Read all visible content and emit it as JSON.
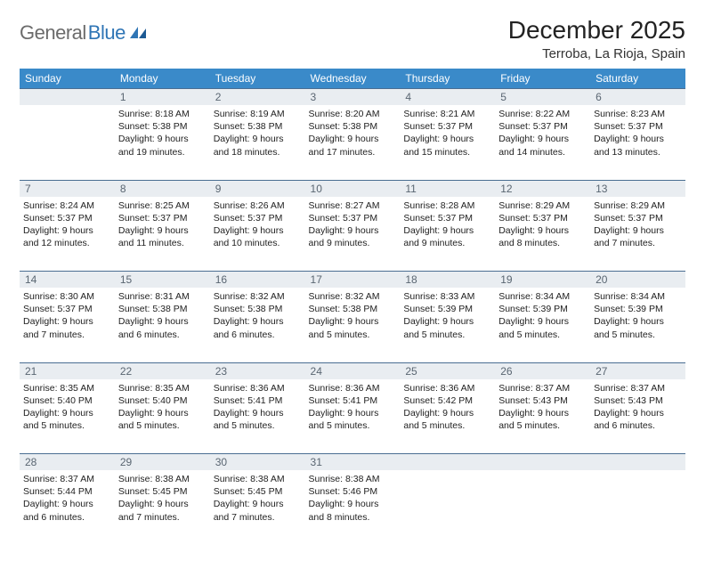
{
  "brand": {
    "name_gray": "General",
    "name_blue": "Blue"
  },
  "title": {
    "month": "December 2025",
    "location": "Terroba, La Rioja, Spain"
  },
  "colors": {
    "header_bg": "#3a8ac9",
    "header_text": "#ffffff",
    "daynum_bg": "#e9edf1",
    "daynum_text": "#5a6672",
    "border": "#2f5d88",
    "logo_gray": "#6b6b6b",
    "logo_blue": "#2f75b5"
  },
  "weekdays": [
    "Sunday",
    "Monday",
    "Tuesday",
    "Wednesday",
    "Thursday",
    "Friday",
    "Saturday"
  ],
  "weeks": [
    {
      "nums": [
        "",
        "1",
        "2",
        "3",
        "4",
        "5",
        "6"
      ],
      "cells": [
        null,
        {
          "sunrise": "8:18 AM",
          "sunset": "5:38 PM",
          "daylight": "9 hours and 19 minutes."
        },
        {
          "sunrise": "8:19 AM",
          "sunset": "5:38 PM",
          "daylight": "9 hours and 18 minutes."
        },
        {
          "sunrise": "8:20 AM",
          "sunset": "5:38 PM",
          "daylight": "9 hours and 17 minutes."
        },
        {
          "sunrise": "8:21 AM",
          "sunset": "5:37 PM",
          "daylight": "9 hours and 15 minutes."
        },
        {
          "sunrise": "8:22 AM",
          "sunset": "5:37 PM",
          "daylight": "9 hours and 14 minutes."
        },
        {
          "sunrise": "8:23 AM",
          "sunset": "5:37 PM",
          "daylight": "9 hours and 13 minutes."
        }
      ]
    },
    {
      "nums": [
        "7",
        "8",
        "9",
        "10",
        "11",
        "12",
        "13"
      ],
      "cells": [
        {
          "sunrise": "8:24 AM",
          "sunset": "5:37 PM",
          "daylight": "9 hours and 12 minutes."
        },
        {
          "sunrise": "8:25 AM",
          "sunset": "5:37 PM",
          "daylight": "9 hours and 11 minutes."
        },
        {
          "sunrise": "8:26 AM",
          "sunset": "5:37 PM",
          "daylight": "9 hours and 10 minutes."
        },
        {
          "sunrise": "8:27 AM",
          "sunset": "5:37 PM",
          "daylight": "9 hours and 9 minutes."
        },
        {
          "sunrise": "8:28 AM",
          "sunset": "5:37 PM",
          "daylight": "9 hours and 9 minutes."
        },
        {
          "sunrise": "8:29 AM",
          "sunset": "5:37 PM",
          "daylight": "9 hours and 8 minutes."
        },
        {
          "sunrise": "8:29 AM",
          "sunset": "5:37 PM",
          "daylight": "9 hours and 7 minutes."
        }
      ]
    },
    {
      "nums": [
        "14",
        "15",
        "16",
        "17",
        "18",
        "19",
        "20"
      ],
      "cells": [
        {
          "sunrise": "8:30 AM",
          "sunset": "5:37 PM",
          "daylight": "9 hours and 7 minutes."
        },
        {
          "sunrise": "8:31 AM",
          "sunset": "5:38 PM",
          "daylight": "9 hours and 6 minutes."
        },
        {
          "sunrise": "8:32 AM",
          "sunset": "5:38 PM",
          "daylight": "9 hours and 6 minutes."
        },
        {
          "sunrise": "8:32 AM",
          "sunset": "5:38 PM",
          "daylight": "9 hours and 5 minutes."
        },
        {
          "sunrise": "8:33 AM",
          "sunset": "5:39 PM",
          "daylight": "9 hours and 5 minutes."
        },
        {
          "sunrise": "8:34 AM",
          "sunset": "5:39 PM",
          "daylight": "9 hours and 5 minutes."
        },
        {
          "sunrise": "8:34 AM",
          "sunset": "5:39 PM",
          "daylight": "9 hours and 5 minutes."
        }
      ]
    },
    {
      "nums": [
        "21",
        "22",
        "23",
        "24",
        "25",
        "26",
        "27"
      ],
      "cells": [
        {
          "sunrise": "8:35 AM",
          "sunset": "5:40 PM",
          "daylight": "9 hours and 5 minutes."
        },
        {
          "sunrise": "8:35 AM",
          "sunset": "5:40 PM",
          "daylight": "9 hours and 5 minutes."
        },
        {
          "sunrise": "8:36 AM",
          "sunset": "5:41 PM",
          "daylight": "9 hours and 5 minutes."
        },
        {
          "sunrise": "8:36 AM",
          "sunset": "5:41 PM",
          "daylight": "9 hours and 5 minutes."
        },
        {
          "sunrise": "8:36 AM",
          "sunset": "5:42 PM",
          "daylight": "9 hours and 5 minutes."
        },
        {
          "sunrise": "8:37 AM",
          "sunset": "5:43 PM",
          "daylight": "9 hours and 5 minutes."
        },
        {
          "sunrise": "8:37 AM",
          "sunset": "5:43 PM",
          "daylight": "9 hours and 6 minutes."
        }
      ]
    },
    {
      "nums": [
        "28",
        "29",
        "30",
        "31",
        "",
        "",
        ""
      ],
      "cells": [
        {
          "sunrise": "8:37 AM",
          "sunset": "5:44 PM",
          "daylight": "9 hours and 6 minutes."
        },
        {
          "sunrise": "8:38 AM",
          "sunset": "5:45 PM",
          "daylight": "9 hours and 7 minutes."
        },
        {
          "sunrise": "8:38 AM",
          "sunset": "5:45 PM",
          "daylight": "9 hours and 7 minutes."
        },
        {
          "sunrise": "8:38 AM",
          "sunset": "5:46 PM",
          "daylight": "9 hours and 8 minutes."
        },
        null,
        null,
        null
      ]
    }
  ],
  "labels": {
    "sunrise": "Sunrise:",
    "sunset": "Sunset:",
    "daylight": "Daylight:"
  }
}
